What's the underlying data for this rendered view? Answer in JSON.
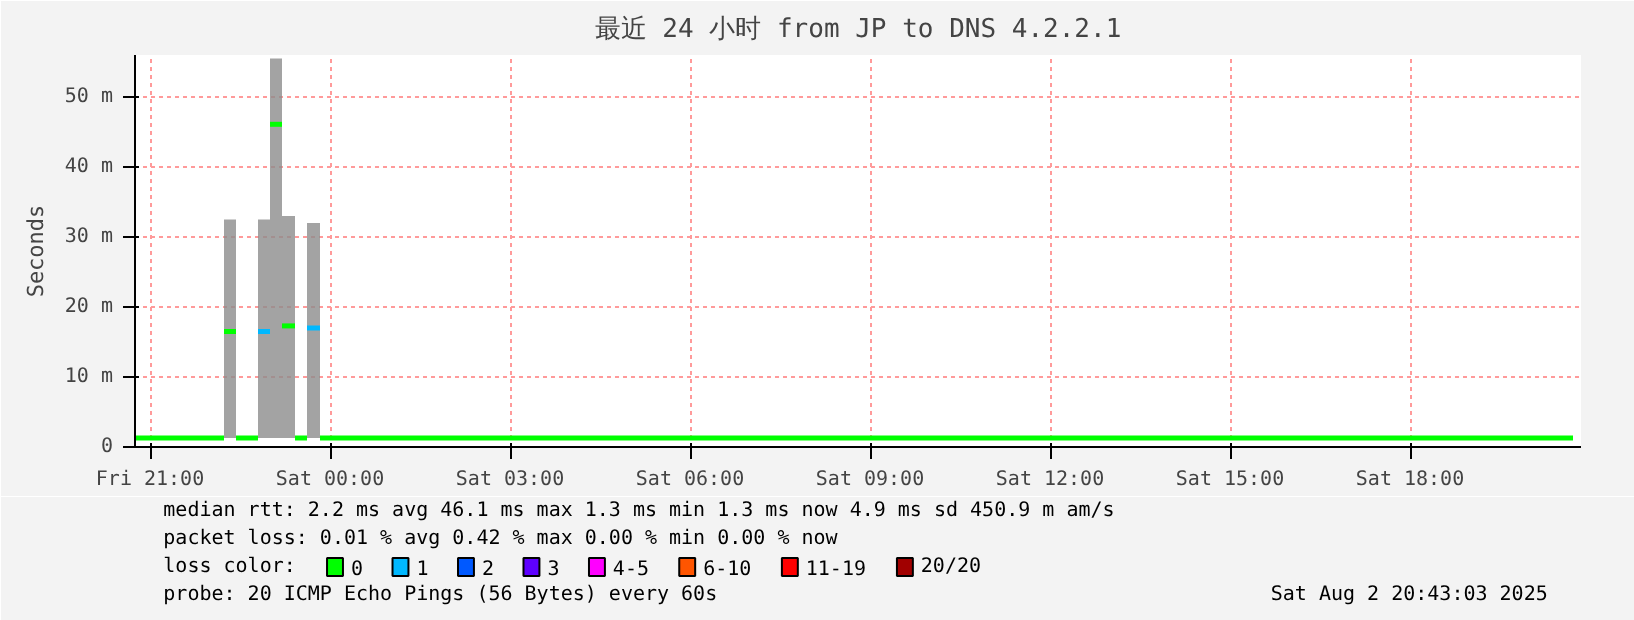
{
  "chart_data": {
    "type": "line",
    "title": "最近 24 小时 from JP to DNS 4.2.2.1",
    "ylabel": "Seconds",
    "marker": "none",
    "line_style": "solid",
    "series": [
      {
        "name": "0",
        "color": "#00ff00",
        "x": [
          "2025-08-01T20:45",
          "2025-08-01T22:14",
          null,
          "2025-08-01T22:26",
          "2025-08-01T22:48",
          null,
          "2025-08-01T23:25",
          "2025-08-01T23:37",
          null,
          "2025-08-01T23:50",
          "2025-08-02T20:43"
        ],
        "values": [
          1.3,
          1.3,
          null,
          1.3,
          1.3,
          null,
          1.3,
          1.3,
          null,
          1.3,
          1.3
        ]
      },
      {
        "color": "#00ff00",
        "x": [
          "2025-08-01T22:14",
          "2025-08-01T22:26"
        ],
        "values": [
          16.5,
          16.5
        ],
        "lower": [
          1.3,
          1.3
        ],
        "upper": [
          32.5,
          32.5
        ]
      },
      {
        "name": "1",
        "color": "#00b8ff",
        "x": [
          "2025-08-01T22:48",
          "2025-08-01T23:00"
        ],
        "values": [
          16.5,
          16.5
        ],
        "lower": [
          1.3,
          1.3
        ],
        "upper": [
          32.5,
          32.5
        ]
      },
      {
        "color": "#00ff00",
        "x": [
          "2025-08-01T23:00",
          "2025-08-01T23:12"
        ],
        "values": [
          46.1,
          46.1
        ],
        "lower": [
          1.3,
          1.3
        ],
        "upper": [
          55.5,
          55.5
        ]
      },
      {
        "color": "#00ff00",
        "x": [
          "2025-08-01T23:12",
          "2025-08-01T23:25"
        ],
        "values": [
          17.3,
          17.3
        ],
        "lower": [
          1.3,
          1.3
        ],
        "upper": [
          33,
          33
        ]
      },
      {
        "color": "#00b8ff",
        "x": [
          "2025-08-01T23:37",
          "2025-08-01T23:50"
        ],
        "values": [
          17,
          17
        ],
        "lower": [
          1.3,
          1.3
        ],
        "upper": [
          32,
          32
        ]
      },
      {
        "name": "2",
        "color": "#0059ff"
      },
      {
        "name": "3",
        "color": "#5e00ff"
      },
      {
        "name": "4-5",
        "color": "#ff00ff"
      },
      {
        "name": "6-10",
        "color": "#ff5500"
      },
      {
        "name": "11-19",
        "color": "#ff0000"
      },
      {
        "name": "20/20",
        "color": "#a10000"
      }
    ],
    "legend_title": "loss color:",
    "legend": "bottom",
    "xlim": [
      "2025-08-01T20:45",
      "2025-08-02T20:51"
    ],
    "xticks": [
      {
        "value": "2025-08-01T21:00",
        "label": "Fri 21:00"
      },
      {
        "value": "2025-08-02T00:00",
        "label": "Sat 00:00"
      },
      {
        "value": "2025-08-02T03:00",
        "label": "Sat 03:00"
      },
      {
        "value": "2025-08-02T06:00",
        "label": "Sat 06:00"
      },
      {
        "value": "2025-08-02T09:00",
        "label": "Sat 09:00"
      },
      {
        "value": "2025-08-02T12:00",
        "label": "Sat 12:00"
      },
      {
        "value": "2025-08-02T15:00",
        "label": "Sat 15:00"
      },
      {
        "value": "2025-08-02T18:00",
        "label": "Sat 18:00"
      }
    ],
    "ylim": [
      0,
      56
    ],
    "yticks": [
      0,
      {
        "value": 10,
        "label": "10 m"
      },
      {
        "value": 20,
        "label": "20 m"
      },
      {
        "value": 30,
        "label": "30 m"
      },
      {
        "value": 40,
        "label": "40 m"
      },
      {
        "value": 50,
        "label": "50 m"
      }
    ],
    "grid": true,
    "annotations": [
      "median rtt:  2.2 ms avg  46.1 ms max  1.3 ms min  1.3 ms now  4.9 ms sd  450.9 m am/s",
      "packet loss: 0.01 % avg  0.42 % max  0.00 % min  0.00 % now",
      "probe:       20 ICMP Echo Pings (56 Bytes) every 60s",
      "Sat Aug  2 20:43:03 2025"
    ]
  }
}
